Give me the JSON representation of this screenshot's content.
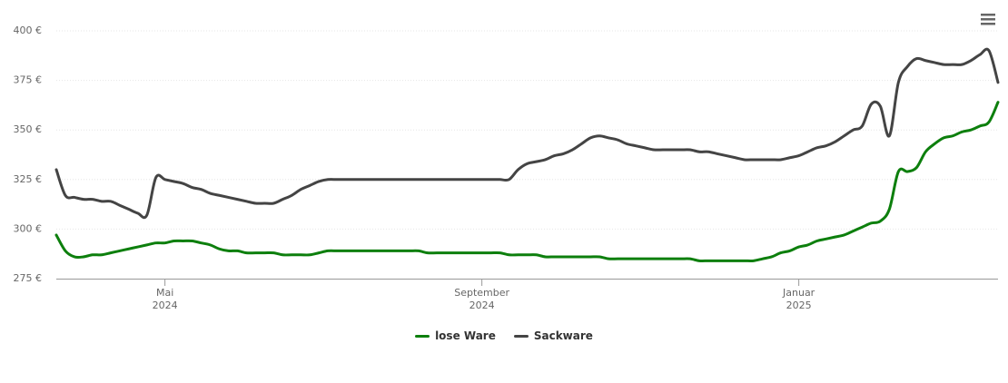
{
  "chart_data": {
    "type": "line",
    "categories": [
      null,
      null,
      null,
      null,
      null,
      null,
      null,
      null,
      null,
      null,
      null,
      null,
      "Mai\n2024",
      null,
      null,
      null,
      null,
      null,
      null,
      null,
      null,
      null,
      null,
      null,
      null,
      null,
      null,
      null,
      null,
      null,
      null,
      null,
      null,
      null,
      null,
      null,
      null,
      null,
      null,
      null,
      null,
      null,
      null,
      null,
      null,
      null,
      null,
      "September\n2024",
      null,
      null,
      null,
      null,
      null,
      null,
      null,
      null,
      null,
      null,
      null,
      null,
      null,
      null,
      null,
      null,
      null,
      null,
      null,
      null,
      null,
      null,
      null,
      null,
      null,
      null,
      null,
      null,
      null,
      null,
      null,
      null,
      null,
      null,
      "Januar\n2025",
      null,
      null,
      null,
      null,
      null,
      null,
      null,
      null,
      null,
      null,
      null,
      null,
      null,
      null,
      null,
      null,
      null,
      null,
      null,
      null,
      null,
      null
    ],
    "series": [
      {
        "name": "lose Ware",
        "color": "#0d7f0d",
        "values": [
          297,
          289,
          286,
          286,
          287,
          287,
          288,
          289,
          290,
          291,
          292,
          293,
          293,
          294,
          294,
          294,
          293,
          292,
          290,
          289,
          289,
          288,
          288,
          288,
          288,
          287,
          287,
          287,
          287,
          288,
          289,
          289,
          289,
          289,
          289,
          289,
          289,
          289,
          289,
          289,
          289,
          288,
          288,
          288,
          288,
          288,
          288,
          288,
          288,
          288,
          287,
          287,
          287,
          287,
          286,
          286,
          286,
          286,
          286,
          286,
          286,
          285,
          285,
          285,
          285,
          285,
          285,
          285,
          285,
          285,
          285,
          284,
          284,
          284,
          284,
          284,
          284,
          284,
          285,
          286,
          288,
          289,
          291,
          292,
          294,
          295,
          296,
          297,
          299,
          301,
          303,
          304,
          310,
          329,
          329,
          331,
          339,
          343,
          346,
          347,
          349,
          350,
          352,
          354,
          364
        ]
      },
      {
        "name": "Sackware",
        "color": "#444444",
        "values": [
          330,
          317,
          316,
          315,
          315,
          314,
          314,
          312,
          310,
          308,
          307,
          326,
          325,
          324,
          323,
          321,
          320,
          318,
          317,
          316,
          315,
          314,
          313,
          313,
          313,
          315,
          317,
          320,
          322,
          324,
          325,
          325,
          325,
          325,
          325,
          325,
          325,
          325,
          325,
          325,
          325,
          325,
          325,
          325,
          325,
          325,
          325,
          325,
          325,
          325,
          325,
          330,
          333,
          334,
          335,
          337,
          338,
          340,
          343,
          346,
          347,
          346,
          345,
          343,
          342,
          341,
          340,
          340,
          340,
          340,
          340,
          339,
          339,
          338,
          337,
          336,
          335,
          335,
          335,
          335,
          335,
          336,
          337,
          339,
          341,
          342,
          344,
          347,
          350,
          352,
          363,
          362,
          347,
          374,
          382,
          386,
          385,
          384,
          383,
          383,
          383,
          385,
          388,
          390,
          374
        ]
      }
    ],
    "ylim": [
      275,
      400
    ],
    "yticks": [
      {
        "value": 275,
        "label": "275 €"
      },
      {
        "value": 300,
        "label": "300 €"
      },
      {
        "value": 325,
        "label": "325 €"
      },
      {
        "value": 350,
        "label": "350 €"
      },
      {
        "value": 375,
        "label": "375 €"
      },
      {
        "value": 400,
        "label": "400 €"
      }
    ],
    "grid": true,
    "legend": "bottom"
  }
}
